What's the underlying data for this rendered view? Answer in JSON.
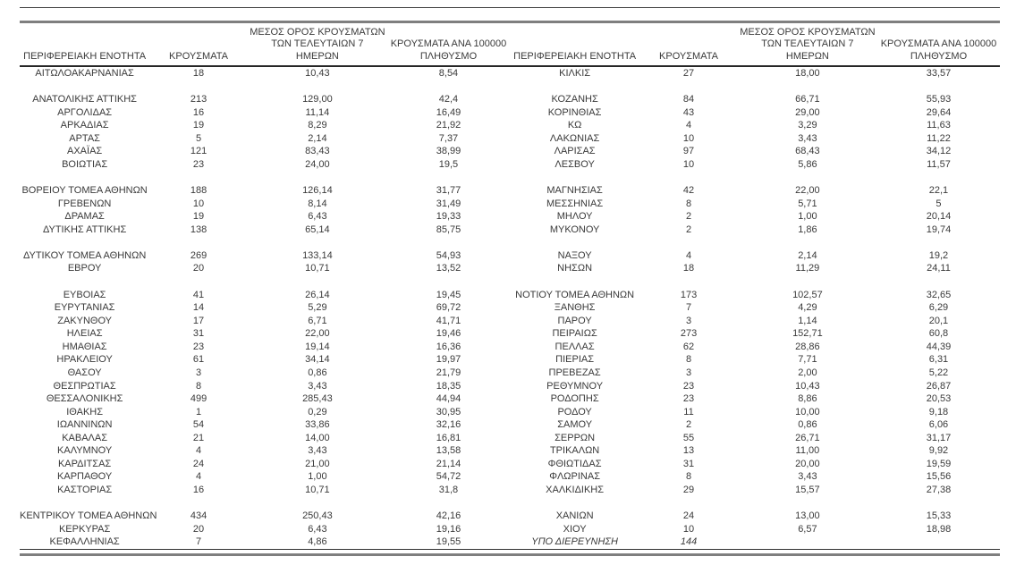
{
  "headers": {
    "region": "ΠΕΡΙΦΕΡΕΙΑΚΗ ΕΝΟΤΗΤΑ",
    "cases": "ΚΡΟΥΣΜΑΤΑ",
    "avg7_lines": [
      "ΜΕΣΟΣ ΟΡΟΣ ΚΡΟΥΣΜΑΤΩΝ",
      "ΤΩΝ ΤΕΛΕΥΤΑΙΩΝ 7",
      "ΗΜΕΡΩΝ"
    ],
    "per100k_lines": [
      "ΚΡΟΥΣΜΑΤΑ ΑΝΑ 100000",
      "ΠΛΗΘΥΣΜΟ"
    ]
  },
  "colors": {
    "text": "#3a3a3a",
    "rule_thin": "#404040",
    "rule_thick": "#7f7f7f"
  },
  "left_rows": [
    {
      "region": "ΑΙΤΩΛΟΑΚΑΡΝΑΝΙΑΣ",
      "cases": "18",
      "avg7": "10,43",
      "per100k": "8,54"
    },
    {},
    {
      "region": "ΑΝΑΤΟΛΙΚΗΣ ΑΤΤΙΚΗΣ",
      "cases": "213",
      "avg7": "129,00",
      "per100k": "42,4"
    },
    {
      "region": "ΑΡΓΟΛΙΔΑΣ",
      "cases": "16",
      "avg7": "11,14",
      "per100k": "16,49"
    },
    {
      "region": "ΑΡΚΑΔΙΑΣ",
      "cases": "19",
      "avg7": "8,29",
      "per100k": "21,92"
    },
    {
      "region": "ΑΡΤΑΣ",
      "cases": "5",
      "avg7": "2,14",
      "per100k": "7,37"
    },
    {
      "region": "ΑΧΑΪΑΣ",
      "cases": "121",
      "avg7": "83,43",
      "per100k": "38,99"
    },
    {
      "region": "ΒΟΙΩΤΙΑΣ",
      "cases": "23",
      "avg7": "24,00",
      "per100k": "19,5"
    },
    {},
    {
      "region": "ΒΟΡΕΙΟΥ ΤΟΜΕΑ ΑΘΗΝΩΝ",
      "cases": "188",
      "avg7": "126,14",
      "per100k": "31,77"
    },
    {
      "region": "ΓΡΕΒΕΝΩΝ",
      "cases": "10",
      "avg7": "8,14",
      "per100k": "31,49"
    },
    {
      "region": "ΔΡΑΜΑΣ",
      "cases": "19",
      "avg7": "6,43",
      "per100k": "19,33"
    },
    {
      "region": "ΔΥΤΙΚΗΣ ΑΤΤΙΚΗΣ",
      "cases": "138",
      "avg7": "65,14",
      "per100k": "85,75"
    },
    {},
    {
      "region": "ΔΥΤΙΚΟΥ ΤΟΜΕΑ ΑΘΗΝΩΝ",
      "cases": "269",
      "avg7": "133,14",
      "per100k": "54,93"
    },
    {
      "region": "ΕΒΡΟΥ",
      "cases": "20",
      "avg7": "10,71",
      "per100k": "13,52"
    },
    {},
    {
      "region": "ΕΥΒΟΙΑΣ",
      "cases": "41",
      "avg7": "26,14",
      "per100k": "19,45"
    },
    {
      "region": "ΕΥΡΥΤΑΝΙΑΣ",
      "cases": "14",
      "avg7": "5,29",
      "per100k": "69,72"
    },
    {
      "region": "ΖΑΚΥΝΘΟΥ",
      "cases": "17",
      "avg7": "6,71",
      "per100k": "41,71"
    },
    {
      "region": "ΗΛΕΙΑΣ",
      "cases": "31",
      "avg7": "22,00",
      "per100k": "19,46"
    },
    {
      "region": "ΗΜΑΘΙΑΣ",
      "cases": "23",
      "avg7": "19,14",
      "per100k": "16,36"
    },
    {
      "region": "ΗΡΑΚΛΕΙΟΥ",
      "cases": "61",
      "avg7": "34,14",
      "per100k": "19,97"
    },
    {
      "region": "ΘΑΣΟΥ",
      "cases": "3",
      "avg7": "0,86",
      "per100k": "21,79"
    },
    {
      "region": "ΘΕΣΠΡΩΤΙΑΣ",
      "cases": "8",
      "avg7": "3,43",
      "per100k": "18,35"
    },
    {
      "region": "ΘΕΣΣΑΛΟΝΙΚΗΣ",
      "cases": "499",
      "avg7": "285,43",
      "per100k": "44,94"
    },
    {
      "region": "ΙΘΑΚΗΣ",
      "cases": "1",
      "avg7": "0,29",
      "per100k": "30,95"
    },
    {
      "region": "ΙΩΑΝΝΙΝΩΝ",
      "cases": "54",
      "avg7": "33,86",
      "per100k": "32,16"
    },
    {
      "region": "ΚΑΒΑΛΑΣ",
      "cases": "21",
      "avg7": "14,00",
      "per100k": "16,81"
    },
    {
      "region": "ΚΑΛΥΜΝΟΥ",
      "cases": "4",
      "avg7": "3,43",
      "per100k": "13,58"
    },
    {
      "region": "ΚΑΡΔΙΤΣΑΣ",
      "cases": "24",
      "avg7": "21,00",
      "per100k": "21,14"
    },
    {
      "region": "ΚΑΡΠΑΘΟΥ",
      "cases": "4",
      "avg7": "1,00",
      "per100k": "54,72"
    },
    {
      "region": "ΚΑΣΤΟΡΙΑΣ",
      "cases": "16",
      "avg7": "10,71",
      "per100k": "31,8"
    },
    {},
    {
      "region": "ΚΕΝΤΡΙΚΟΥ ΤΟΜΕΑ ΑΘΗΝΩΝ",
      "cases": "434",
      "avg7": "250,43",
      "per100k": "42,16"
    },
    {
      "region": "ΚΕΡΚΥΡΑΣ",
      "cases": "20",
      "avg7": "6,43",
      "per100k": "19,16"
    },
    {
      "region": "ΚΕΦΑΛΛΗΝΙΑΣ",
      "cases": "7",
      "avg7": "4,86",
      "per100k": "19,55"
    }
  ],
  "right_rows": [
    {
      "region": "ΚΙΛΚΙΣ",
      "cases": "27",
      "avg7": "18,00",
      "per100k": "33,57"
    },
    {},
    {
      "region": "ΚΟΖΑΝΗΣ",
      "cases": "84",
      "avg7": "66,71",
      "per100k": "55,93"
    },
    {
      "region": "ΚΟΡΙΝΘΙΑΣ",
      "cases": "43",
      "avg7": "29,00",
      "per100k": "29,64"
    },
    {
      "region": "ΚΩ",
      "cases": "4",
      "avg7": "3,29",
      "per100k": "11,63"
    },
    {
      "region": "ΛΑΚΩΝΙΑΣ",
      "cases": "10",
      "avg7": "3,43",
      "per100k": "11,22"
    },
    {
      "region": "ΛΑΡΙΣΑΣ",
      "cases": "97",
      "avg7": "68,43",
      "per100k": "34,12"
    },
    {
      "region": "ΛΕΣΒΟΥ",
      "cases": "10",
      "avg7": "5,86",
      "per100k": "11,57"
    },
    {},
    {
      "region": "ΜΑΓΝΗΣΙΑΣ",
      "cases": "42",
      "avg7": "22,00",
      "per100k": "22,1"
    },
    {
      "region": "ΜΕΣΣΗΝΙΑΣ",
      "cases": "8",
      "avg7": "5,71",
      "per100k": "5"
    },
    {
      "region": "ΜΗΛΟΥ",
      "cases": "2",
      "avg7": "1,00",
      "per100k": "20,14"
    },
    {
      "region": "ΜΥΚΟΝΟΥ",
      "cases": "2",
      "avg7": "1,86",
      "per100k": "19,74"
    },
    {},
    {
      "region": "ΝΑΞΟΥ",
      "cases": "4",
      "avg7": "2,14",
      "per100k": "19,2"
    },
    {
      "region": "ΝΗΣΩΝ",
      "cases": "18",
      "avg7": "11,29",
      "per100k": "24,11"
    },
    {},
    {
      "region": "ΝΟΤΙΟΥ ΤΟΜΕΑ ΑΘΗΝΩΝ",
      "cases": "173",
      "avg7": "102,57",
      "per100k": "32,65"
    },
    {
      "region": "ΞΑΝΘΗΣ",
      "cases": "7",
      "avg7": "4,29",
      "per100k": "6,29"
    },
    {
      "region": "ΠΑΡΟΥ",
      "cases": "3",
      "avg7": "1,14",
      "per100k": "20,1"
    },
    {
      "region": "ΠΕΙΡΑΙΩΣ",
      "cases": "273",
      "avg7": "152,71",
      "per100k": "60,8"
    },
    {
      "region": "ΠΕΛΛΑΣ",
      "cases": "62",
      "avg7": "28,86",
      "per100k": "44,39"
    },
    {
      "region": "ΠΙΕΡΙΑΣ",
      "cases": "8",
      "avg7": "7,71",
      "per100k": "6,31"
    },
    {
      "region": "ΠΡΕΒΕΖΑΣ",
      "cases": "3",
      "avg7": "2,00",
      "per100k": "5,22"
    },
    {
      "region": "ΡΕΘΥΜΝΟΥ",
      "cases": "23",
      "avg7": "10,43",
      "per100k": "26,87"
    },
    {
      "region": "ΡΟΔΟΠΗΣ",
      "cases": "23",
      "avg7": "8,86",
      "per100k": "20,53"
    },
    {
      "region": "ΡΟΔΟΥ",
      "cases": "11",
      "avg7": "10,00",
      "per100k": "9,18"
    },
    {
      "region": "ΣΑΜΟΥ",
      "cases": "2",
      "avg7": "0,86",
      "per100k": "6,06"
    },
    {
      "region": "ΣΕΡΡΩΝ",
      "cases": "55",
      "avg7": "26,71",
      "per100k": "31,17"
    },
    {
      "region": "ΤΡΙΚΑΛΩΝ",
      "cases": "13",
      "avg7": "11,00",
      "per100k": "9,92"
    },
    {
      "region": "ΦΘΙΩΤΙΔΑΣ",
      "cases": "31",
      "avg7": "20,00",
      "per100k": "19,59"
    },
    {
      "region": "ΦΛΩΡΙΝΑΣ",
      "cases": "8",
      "avg7": "3,43",
      "per100k": "15,56"
    },
    {
      "region": "ΧΑΛΚΙΔΙΚΗΣ",
      "cases": "29",
      "avg7": "15,57",
      "per100k": "27,38"
    },
    {},
    {
      "region": "ΧΑΝΙΩΝ",
      "cases": "24",
      "avg7": "13,00",
      "per100k": "15,33"
    },
    {
      "region": "ΧΙΟΥ",
      "cases": "10",
      "avg7": "6,57",
      "per100k": "18,98"
    },
    {
      "region": "ΥΠΟ ΔΙΕΡΕΥΝΗΣΗ",
      "cases": "144",
      "avg7": "",
      "per100k": "",
      "italic": true
    }
  ]
}
